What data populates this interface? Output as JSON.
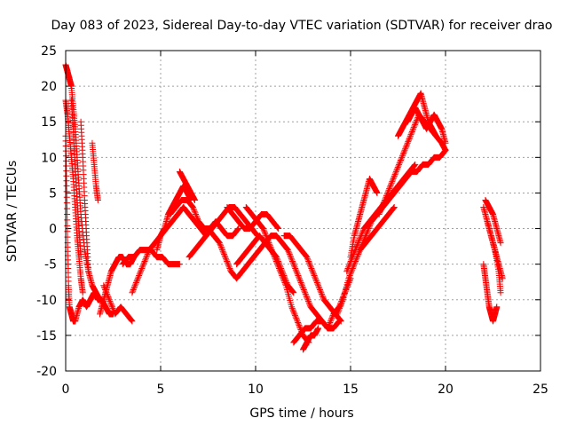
{
  "chart_data": {
    "type": "scatter",
    "title": "Day 083 of 2023, Sidereal Day-to-day VTEC variation (SDTVAR) for receiver drao",
    "xlabel": "GPS time / hours",
    "ylabel": "SDTVAR / TECUs",
    "xlim": [
      0,
      25
    ],
    "ylim": [
      -20,
      25
    ],
    "xticks": [
      0,
      5,
      10,
      15,
      20,
      25
    ],
    "yticks": [
      -20,
      -15,
      -10,
      -5,
      0,
      5,
      10,
      15,
      20,
      25
    ],
    "grid": true,
    "marker": "+",
    "color": "#ff0000",
    "series": [
      {
        "name": "SDTVAR",
        "segments": [
          {
            "x": [
              0.0,
              0.1,
              0.2,
              0.3,
              0.4,
              0.5,
              0.6,
              0.7,
              0.8,
              1.0,
              1.2,
              1.4,
              1.6,
              1.8
            ],
            "y": [
              23,
              22,
              21,
              20,
              17,
              14,
              10,
              6,
              2,
              -3,
              -6,
              -8,
              -9,
              -10
            ]
          },
          {
            "x": [
              0.0,
              0.1,
              0.2,
              0.3,
              0.4,
              0.5,
              0.6,
              0.7,
              0.8,
              0.9
            ],
            "y": [
              18,
              16,
              13,
              10,
              7,
              3,
              -1,
              -4,
              -7,
              -9
            ]
          },
          {
            "x": [
              0.0,
              0.05,
              0.1,
              0.15,
              0.2,
              0.3,
              0.4,
              0.5
            ],
            "y": [
              13,
              6,
              -2,
              -8,
              -11,
              -12,
              -13,
              -13
            ]
          },
          {
            "x": [
              0.3,
              0.4,
              0.5,
              0.6,
              0.7,
              0.8
            ],
            "y": [
              18,
              14,
              9,
              4,
              0,
              -4
            ]
          },
          {
            "x": [
              0.8,
              0.9,
              1.0,
              1.1,
              1.2
            ],
            "y": [
              15,
              10,
              4,
              -1,
              -6
            ]
          },
          {
            "x": [
              1.4,
              1.5,
              1.6,
              1.7
            ],
            "y": [
              12,
              9,
              6,
              4
            ]
          },
          {
            "x": [
              0.5,
              0.7,
              0.9,
              1.1,
              1.3,
              1.5,
              1.7,
              1.9,
              2.1,
              2.3,
              2.5
            ],
            "y": [
              -13,
              -11,
              -10,
              -11,
              -10,
              -9,
              -10,
              -10,
              -11,
              -12,
              -12
            ]
          },
          {
            "x": [
              1.8,
              2.0,
              2.2,
              2.4,
              2.6,
              2.8,
              3.0,
              3.2,
              3.4,
              3.6
            ],
            "y": [
              -12,
              -10,
              -8,
              -6,
              -5,
              -4,
              -4,
              -5,
              -5,
              -4
            ]
          },
          {
            "x": [
              2.0,
              2.3,
              2.6,
              2.9,
              3.2,
              3.5
            ],
            "y": [
              -8,
              -10,
              -12,
              -11,
              -12,
              -13
            ]
          },
          {
            "x": [
              3.0,
              3.3,
              3.6,
              3.9,
              4.2,
              4.5,
              4.8,
              5.1,
              5.4,
              5.7,
              6.0
            ],
            "y": [
              -5,
              -4,
              -4,
              -3,
              -3,
              -3,
              -4,
              -4,
              -5,
              -5,
              -5
            ]
          },
          {
            "x": [
              3.5,
              3.8,
              4.1,
              4.4,
              4.7,
              5.0,
              5.3,
              5.6,
              5.9,
              6.2,
              6.5,
              6.8,
              7.1,
              7.4
            ],
            "y": [
              -9,
              -7,
              -5,
              -3,
              -2,
              -1,
              0,
              1,
              2,
              3,
              2,
              1,
              0,
              -1
            ]
          },
          {
            "x": [
              4.8,
              5.0,
              5.2,
              5.4,
              5.6,
              5.8,
              6.0,
              6.2,
              6.4,
              6.6
            ],
            "y": [
              -3,
              -1,
              0,
              2,
              3,
              4,
              5,
              6,
              5,
              4
            ]
          },
          {
            "x": [
              5.5,
              5.8,
              6.1,
              6.4,
              6.7,
              7.0,
              7.3,
              7.6,
              7.9,
              8.2,
              8.5,
              8.8,
              9.1
            ],
            "y": [
              2,
              3,
              4,
              4,
              3,
              1,
              0,
              0,
              1,
              0,
              -1,
              -1,
              0
            ]
          },
          {
            "x": [
              6.0,
              6.2,
              6.4,
              6.6,
              6.8
            ],
            "y": [
              8,
              7,
              6,
              5,
              4
            ]
          },
          {
            "x": [
              6.5,
              6.8,
              7.1,
              7.4,
              7.7,
              8.0,
              8.3,
              8.6,
              8.9,
              9.2,
              9.5,
              9.8,
              10.1
            ],
            "y": [
              -4,
              -3,
              -2,
              -1,
              0,
              1,
              2,
              3,
              3,
              2,
              1,
              0,
              -1
            ]
          },
          {
            "x": [
              7.5,
              7.8,
              8.1,
              8.4,
              8.7,
              9.0,
              9.3,
              9.6,
              9.9,
              10.2,
              10.5
            ],
            "y": [
              0,
              -1,
              -2,
              -4,
              -6,
              -7,
              -6,
              -5,
              -4,
              -3,
              -2
            ]
          },
          {
            "x": [
              8.5,
              8.8,
              9.1,
              9.4,
              9.7,
              10.0,
              10.3,
              10.6,
              10.9,
              11.2
            ],
            "y": [
              3,
              2,
              1,
              0,
              0,
              1,
              2,
              2,
              1,
              0
            ]
          },
          {
            "x": [
              9.0,
              9.3,
              9.6,
              9.9,
              10.2,
              10.5,
              10.8,
              11.1,
              11.4,
              11.7,
              12.0
            ],
            "y": [
              -5,
              -4,
              -3,
              -2,
              -1,
              -2,
              -3,
              -4,
              -6,
              -8,
              -9
            ]
          },
          {
            "x": [
              9.5,
              9.8,
              10.1,
              10.4,
              10.7,
              11.0,
              11.3,
              11.6,
              11.9,
              12.2,
              12.5,
              12.8
            ],
            "y": [
              3,
              2,
              1,
              0,
              -2,
              -4,
              -6,
              -8,
              -11,
              -13,
              -15,
              -16
            ]
          },
          {
            "x": [
              10.5,
              10.8,
              11.1,
              11.4,
              11.7,
              12.0,
              12.3,
              12.6,
              12.9,
              13.2,
              13.5,
              13.8,
              14.1,
              14.4
            ],
            "y": [
              -2,
              -1,
              -1,
              -2,
              -3,
              -5,
              -7,
              -9,
              -11,
              -12,
              -13,
              -14,
              -14,
              -13
            ]
          },
          {
            "x": [
              11.5,
              11.8,
              12.1,
              12.4,
              12.7,
              13.0,
              13.3,
              13.6,
              13.9,
              14.2,
              14.5
            ],
            "y": [
              -1,
              -1,
              -2,
              -3,
              -4,
              -6,
              -8,
              -10,
              -11,
              -12,
              -13
            ]
          },
          {
            "x": [
              12.0,
              12.3,
              12.6,
              12.9,
              13.2,
              13.5,
              13.8,
              14.1,
              14.4,
              14.7,
              15.0
            ],
            "y": [
              -16,
              -15,
              -14,
              -14,
              -13,
              -13,
              -14,
              -12,
              -11,
              -9,
              -7
            ]
          },
          {
            "x": [
              12.5,
              12.7,
              12.9,
              13.1,
              13.3
            ],
            "y": [
              -17,
              -16,
              -15,
              -15,
              -14
            ]
          },
          {
            "x": [
              14.3,
              14.6,
              14.9,
              15.2,
              15.5,
              15.8,
              16.1,
              16.4,
              16.7,
              17.0,
              17.3
            ],
            "y": [
              -12,
              -10,
              -7,
              -5,
              -3,
              -2,
              -1,
              0,
              1,
              2,
              3
            ]
          },
          {
            "x": [
              14.8,
              15.1,
              15.4,
              15.7,
              16.0,
              16.3,
              16.6,
              16.9,
              17.2,
              17.5,
              17.8,
              18.1,
              18.4
            ],
            "y": [
              -6,
              -4,
              -2,
              0,
              1,
              2,
              3,
              4,
              5,
              6,
              7,
              8,
              9
            ]
          },
          {
            "x": [
              15.0,
              15.2,
              15.4,
              15.6,
              15.8,
              16.0,
              16.2,
              16.4
            ],
            "y": [
              -4,
              -1,
              1,
              3,
              5,
              7,
              6,
              5
            ]
          },
          {
            "x": [
              15.5,
              15.8,
              16.1,
              16.4,
              16.7,
              17.0,
              17.3,
              17.6,
              17.9,
              18.2,
              18.5,
              18.8,
              19.1,
              19.4,
              19.7,
              20.0
            ],
            "y": [
              -3,
              -1,
              1,
              2,
              3,
              4,
              5,
              6,
              7,
              8,
              8,
              9,
              9,
              10,
              10,
              11
            ]
          },
          {
            "x": [
              16.5,
              16.8,
              17.1,
              17.4,
              17.7,
              18.0,
              18.3,
              18.6,
              18.9,
              19.2,
              19.5,
              19.8,
              20.0
            ],
            "y": [
              2,
              4,
              6,
              8,
              10,
              12,
              14,
              16,
              15,
              14,
              13,
              12,
              11
            ]
          },
          {
            "x": [
              17.5,
              17.7,
              17.9,
              18.1,
              18.3,
              18.5,
              18.7,
              18.9,
              19.1,
              19.3,
              19.5
            ],
            "y": [
              13,
              14,
              15,
              16,
              17,
              18,
              19,
              17,
              15,
              14,
              13
            ]
          },
          {
            "x": [
              18.0,
              18.2,
              18.4,
              18.6,
              18.8,
              19.0,
              19.2,
              19.4,
              19.6,
              19.8,
              20.0
            ],
            "y": [
              15,
              16,
              17,
              16,
              15,
              14,
              15,
              16,
              15,
              14,
              12
            ]
          },
          {
            "x": [
              22.0,
              22.1,
              22.2,
              22.3,
              22.4,
              22.5,
              22.6,
              22.7
            ],
            "y": [
              -5,
              -7,
              -9,
              -11,
              -12,
              -13,
              -12,
              -11
            ]
          },
          {
            "x": [
              22.0,
              22.2,
              22.4,
              22.6,
              22.8,
              22.9
            ],
            "y": [
              3,
              1,
              -1,
              -3,
              -6,
              -9
            ]
          },
          {
            "x": [
              22.1,
              22.3,
              22.5,
              22.7,
              22.9
            ],
            "y": [
              4,
              3,
              2,
              0,
              -2
            ]
          },
          {
            "x": [
              22.2,
              22.4,
              22.6,
              22.8,
              23.0
            ],
            "y": [
              1,
              -1,
              -3,
              -5,
              -7
            ]
          }
        ]
      }
    ]
  }
}
